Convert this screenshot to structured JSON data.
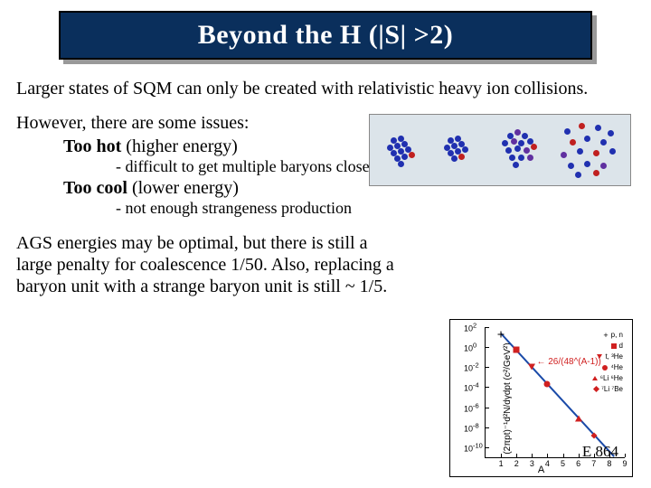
{
  "title": "Beyond the H (|S| >2)",
  "para1": "Larger states of SQM can only be created with relativistic heavy ion collisions.",
  "para2": "However, there are some issues:",
  "issue1_label": "Too hot",
  "issue1_paren": " (higher energy)",
  "issue1_detail": "- difficult to get multiple baryons close enough to fuse",
  "issue2_label": "Too cool",
  "issue2_paren": " (lower energy)",
  "issue2_detail": "- not enough strangeness production",
  "para3": "AGS energies may be optimal, but there is still a large penalty for coalescence 1/50.  Also, replacing a baryon unit with a strange baryon unit is still ~ 1/5.",
  "exp_label": "E 864",
  "chart": {
    "type": "scatter-log",
    "xlabel": "A",
    "ylabel": "(2πpt)⁻¹d²N/dγdpt (c²/GeV²)",
    "ylim_exp": [
      -11,
      2
    ],
    "xlim": [
      0,
      9
    ],
    "xticks": [
      1,
      2,
      3,
      4,
      5,
      6,
      7,
      8,
      9
    ],
    "yticks_exp": [
      2,
      0,
      -2,
      -4,
      -6,
      -8,
      -10
    ],
    "line_color": "#1a4aa8",
    "line_label": "26/(48^(A-1))",
    "line_label_color": "#d02020",
    "points": [
      {
        "x": 1,
        "y_exp": 1.3,
        "label": "p, n",
        "shape": "cross",
        "color": "#000000"
      },
      {
        "x": 2,
        "y_exp": -0.3,
        "label": "d",
        "shape": "square",
        "color": "#d02020"
      },
      {
        "x": 3,
        "y_exp": -2.0,
        "label": "t, ³He",
        "shape": "tri-down",
        "color": "#d02020"
      },
      {
        "x": 4,
        "y_exp": -3.7,
        "label": "⁴He",
        "shape": "circle",
        "color": "#d02020"
      },
      {
        "x": 6,
        "y_exp": -7.1,
        "label": "⁶Li ⁶He",
        "shape": "tri-up",
        "color": "#d02020"
      },
      {
        "x": 7,
        "y_exp": -8.8,
        "label": "⁷Li ⁷Be",
        "shape": "diamond",
        "color": "#d02020"
      }
    ],
    "background_color": "#ffffff",
    "axis_color": "#000000",
    "label_fontsize": 10
  },
  "collision_bg": "#dce4ea",
  "particle_colors": {
    "blue": "#2030b0",
    "red": "#c02020",
    "purple": "#6030a0"
  }
}
